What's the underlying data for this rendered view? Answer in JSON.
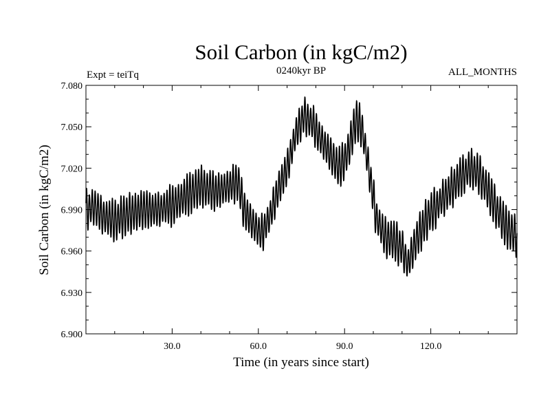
{
  "chart_data": {
    "type": "line",
    "title": "Soil Carbon (in kgC/m2)",
    "subtitle": "0240kyr BP",
    "left_note": "Expt = teiTq",
    "right_note": "ALL_MONTHS",
    "xlabel": "Time (in years since start)",
    "ylabel": "Soil Carbon (in kgC/m2)",
    "xlim": [
      0,
      150
    ],
    "ylim": [
      6.9,
      7.08
    ],
    "x_ticks": [
      {
        "value": 30,
        "label": "30.0"
      },
      {
        "value": 60,
        "label": "60.0"
      },
      {
        "value": 90,
        "label": "90.0"
      },
      {
        "value": 120,
        "label": "120.0"
      }
    ],
    "y_ticks": [
      {
        "value": 6.9,
        "label": "6.900"
      },
      {
        "value": 6.93,
        "label": "6.930"
      },
      {
        "value": 6.96,
        "label": "6.960"
      },
      {
        "value": 6.99,
        "label": "6.990"
      },
      {
        "value": 7.02,
        "label": "7.020"
      },
      {
        "value": 7.05,
        "label": "7.050"
      },
      {
        "value": 7.08,
        "label": "7.080"
      }
    ],
    "series": [
      {
        "name": "Soil Carbon",
        "annual_mean": {
          "x": [
            0,
            3,
            6,
            10,
            15,
            20,
            25,
            30,
            35,
            40,
            45,
            50,
            53,
            55,
            58,
            61,
            64,
            67,
            70,
            73,
            76,
            79,
            82,
            85,
            88,
            91,
            94,
            96,
            98,
            101,
            104,
            107,
            110,
            112,
            115,
            119,
            123,
            127,
            131,
            134,
            137,
            140,
            143,
            146,
            150
          ],
          "values": [
            6.99,
            6.992,
            6.985,
            6.982,
            6.987,
            6.99,
            6.99,
            6.993,
            7.0,
            7.007,
            7.003,
            7.007,
            7.01,
            6.99,
            6.98,
            6.972,
            6.985,
            7.005,
            7.02,
            7.045,
            7.058,
            7.052,
            7.04,
            7.03,
            7.02,
            7.03,
            7.055,
            7.05,
            7.025,
            6.985,
            6.97,
            6.968,
            6.962,
            6.95,
            6.968,
            6.985,
            6.995,
            7.005,
            7.015,
            7.02,
            7.015,
            7.003,
            6.99,
            6.978,
            6.97
          ]
        },
        "seasonal_amplitude": 0.013,
        "samples_per_year": 12
      }
    ]
  }
}
